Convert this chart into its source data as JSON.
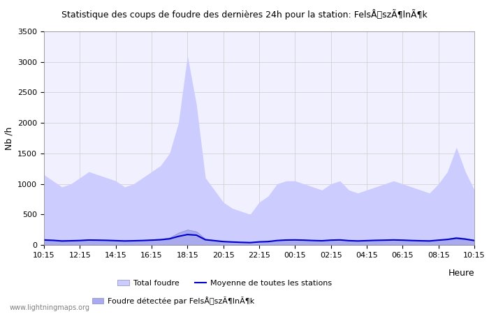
{
  "title": "Statistique des coups de foudre des dernières 24h pour la station: FelsÅszÃ¶lnÃ¶k",
  "ylabel": "Nb /h",
  "xlabel": "Heure",
  "xlim_labels": [
    "10:15",
    "12:15",
    "14:15",
    "16:15",
    "18:15",
    "20:15",
    "22:15",
    "00:15",
    "02:15",
    "04:15",
    "06:15",
    "08:15",
    "10:15"
  ],
  "ylim": [
    0,
    3500
  ],
  "yticks": [
    0,
    500,
    1000,
    1500,
    2000,
    2500,
    3000,
    3500
  ],
  "background_color": "#ffffff",
  "plot_bg_color": "#f0f0ff",
  "grid_color": "#cccccc",
  "total_fill_color": "#ccccff",
  "station_fill_color": "#aaaaee",
  "mean_line_color": "#0000cc",
  "legend_labels": [
    "Total foudre",
    "Moyenne de toutes les stations",
    "Foudre détectée par FelsÅszÃ¶lnÃ¶k"
  ],
  "watermark": "www.lightningmaps.org",
  "total_values": [
    1150,
    1050,
    950,
    1000,
    1100,
    1200,
    1150,
    1100,
    1050,
    950,
    1000,
    1100,
    1200,
    1300,
    1500,
    2000,
    3100,
    2300,
    1100,
    900,
    700,
    600,
    550,
    500,
    700,
    800,
    1000,
    1050,
    1050,
    1000,
    950,
    900,
    1000,
    1050,
    900,
    850,
    900,
    950,
    1000,
    1050,
    1000,
    950,
    900,
    850,
    1000,
    1200,
    1600,
    1200,
    900
  ],
  "station_values": [
    100,
    80,
    60,
    70,
    80,
    90,
    85,
    80,
    75,
    70,
    75,
    80,
    90,
    100,
    120,
    200,
    250,
    220,
    100,
    80,
    60,
    50,
    45,
    40,
    55,
    60,
    80,
    90,
    90,
    85,
    80,
    75,
    85,
    90,
    75,
    70,
    75,
    80,
    85,
    90,
    85,
    80,
    75,
    70,
    85,
    100,
    130,
    110,
    80
  ],
  "mean_values": [
    80,
    75,
    65,
    68,
    72,
    80,
    78,
    75,
    70,
    65,
    68,
    72,
    78,
    85,
    100,
    140,
    170,
    160,
    85,
    70,
    55,
    48,
    42,
    38,
    50,
    55,
    72,
    80,
    82,
    78,
    72,
    68,
    78,
    82,
    70,
    65,
    70,
    75,
    78,
    82,
    78,
    72,
    68,
    65,
    78,
    90,
    110,
    95,
    72
  ]
}
